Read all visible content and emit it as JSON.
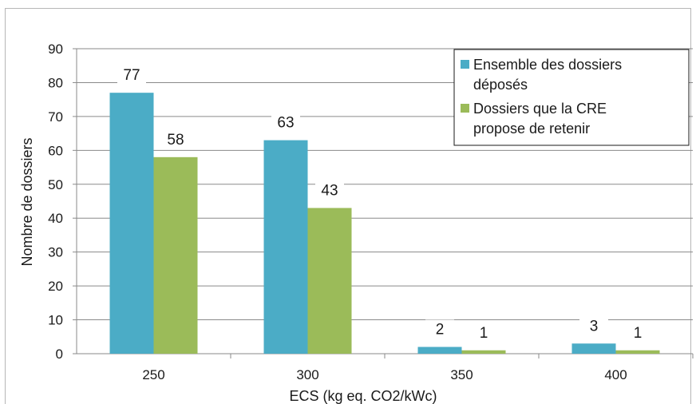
{
  "chart_data": {
    "type": "bar",
    "title": "",
    "xlabel": "ECS (kg eq. CO2/kWc)",
    "ylabel": "Nombre de dossiers",
    "categories": [
      "250",
      "300",
      "350",
      "400"
    ],
    "ylim": [
      0,
      90
    ],
    "yticks": [
      0,
      10,
      20,
      30,
      40,
      50,
      60,
      70,
      80,
      90
    ],
    "grid": true,
    "legend_position": "top-right",
    "series": [
      {
        "name": "Ensemble des dossiers déposés",
        "legend_lines": [
          "Ensemble des dossiers",
          "déposés"
        ],
        "color": "#4bacc6",
        "values": [
          77,
          63,
          2,
          3
        ]
      },
      {
        "name": "Dossiers que la CRE propose de retenir",
        "legend_lines": [
          "Dossiers que la CRE",
          "propose de retenir"
        ],
        "color": "#9bbb59",
        "values": [
          58,
          43,
          1,
          1
        ]
      }
    ]
  }
}
